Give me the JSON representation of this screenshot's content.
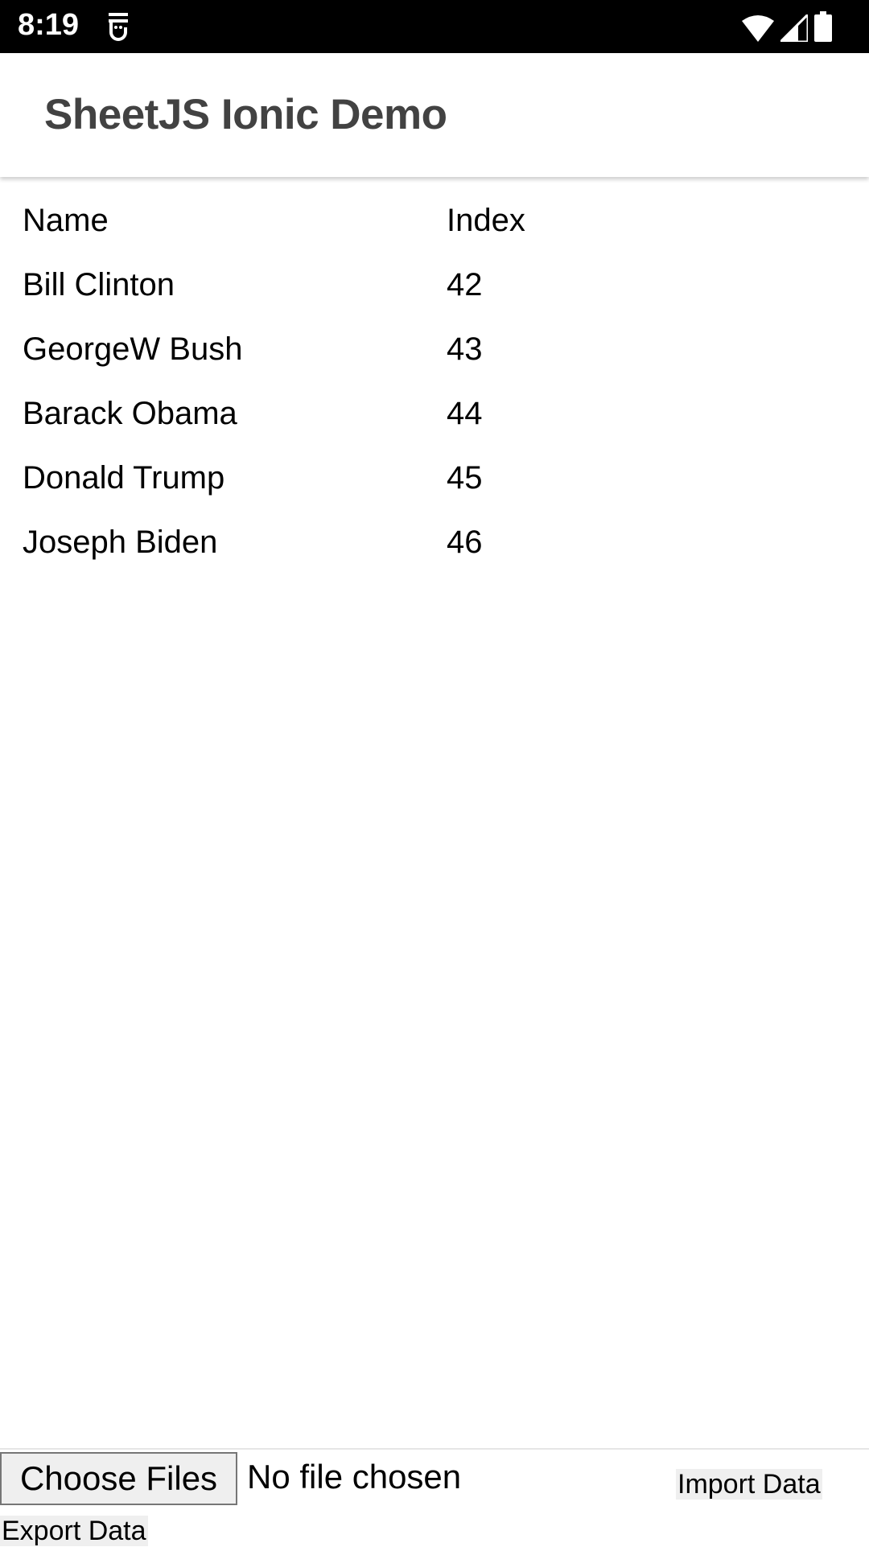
{
  "status_bar": {
    "time": "8:19",
    "icons": [
      "notification-icon",
      "wifi-icon",
      "signal-icon",
      "battery-icon"
    ]
  },
  "header": {
    "title": "SheetJS Ionic Demo"
  },
  "table": {
    "columns": [
      "Name",
      "Index"
    ],
    "rows": [
      [
        "Bill Clinton",
        "42"
      ],
      [
        "GeorgeW Bush",
        "43"
      ],
      [
        "Barack Obama",
        "44"
      ],
      [
        "Donald Trump",
        "45"
      ],
      [
        "Joseph Biden",
        "46"
      ]
    ]
  },
  "footer": {
    "choose_files": "Choose Files",
    "no_file": "No file chosen",
    "import": "Import Data",
    "export": "Export Data"
  }
}
